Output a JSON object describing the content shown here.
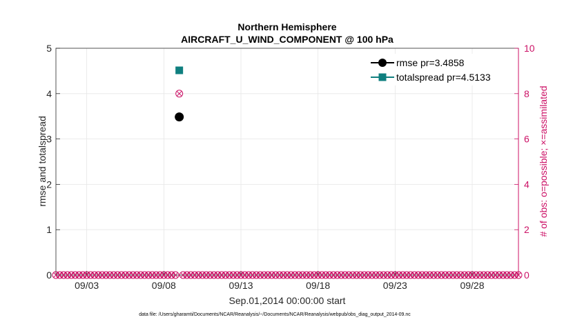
{
  "chart_data": {
    "type": "scatter",
    "title_line1": "Northern Hemisphere",
    "title_line2": "AIRCRAFT_U_WIND_COMPONENT @ 100 hPa",
    "xlabel": "Sep.01,2014 00:00:00 start",
    "ylabel_left": "rmse and totalspread",
    "ylabel_right": "# of obs: o=possible; ×=assimilated",
    "ylim_left": [
      0,
      5
    ],
    "ylim_right": [
      0,
      10
    ],
    "yticks_left": [
      0,
      1,
      2,
      3,
      4,
      5
    ],
    "yticks_right": [
      0,
      2,
      4,
      6,
      8,
      10
    ],
    "xlim_days": [
      1.0,
      31.0
    ],
    "xticks": [
      {
        "day": 3,
        "label": "09/03"
      },
      {
        "day": 8,
        "label": "09/08"
      },
      {
        "day": 13,
        "label": "09/13"
      },
      {
        "day": 18,
        "label": "09/18"
      },
      {
        "day": 23,
        "label": "09/23"
      },
      {
        "day": 28,
        "label": "09/28"
      }
    ],
    "grid": true,
    "series": [
      {
        "name": "rmse",
        "legend_label": "rmse pr=3.4858",
        "color": "#000000",
        "marker": "circle",
        "points": [
          {
            "day": 9.0,
            "value": 3.4858
          }
        ]
      },
      {
        "name": "totalspread",
        "legend_label": "totalspread pr=4.5133",
        "color": "#0f7f7f",
        "marker": "square",
        "points": [
          {
            "day": 9.0,
            "value": 4.5133
          }
        ]
      }
    ],
    "obs_counts": {
      "color": "#cc1166",
      "days_start": 1.0,
      "days_end": 31.0,
      "step_days": 0.25,
      "nonzero": [
        {
          "day": 9.0,
          "possible": 8,
          "assimilated": 8
        }
      ]
    },
    "footer": "data file: /Users/gharamti/Documents/NCAR/Reanalysis/~/Documents/NCAR/Reanalysis/webpub/obs_diag_output_2014-09.nc"
  }
}
